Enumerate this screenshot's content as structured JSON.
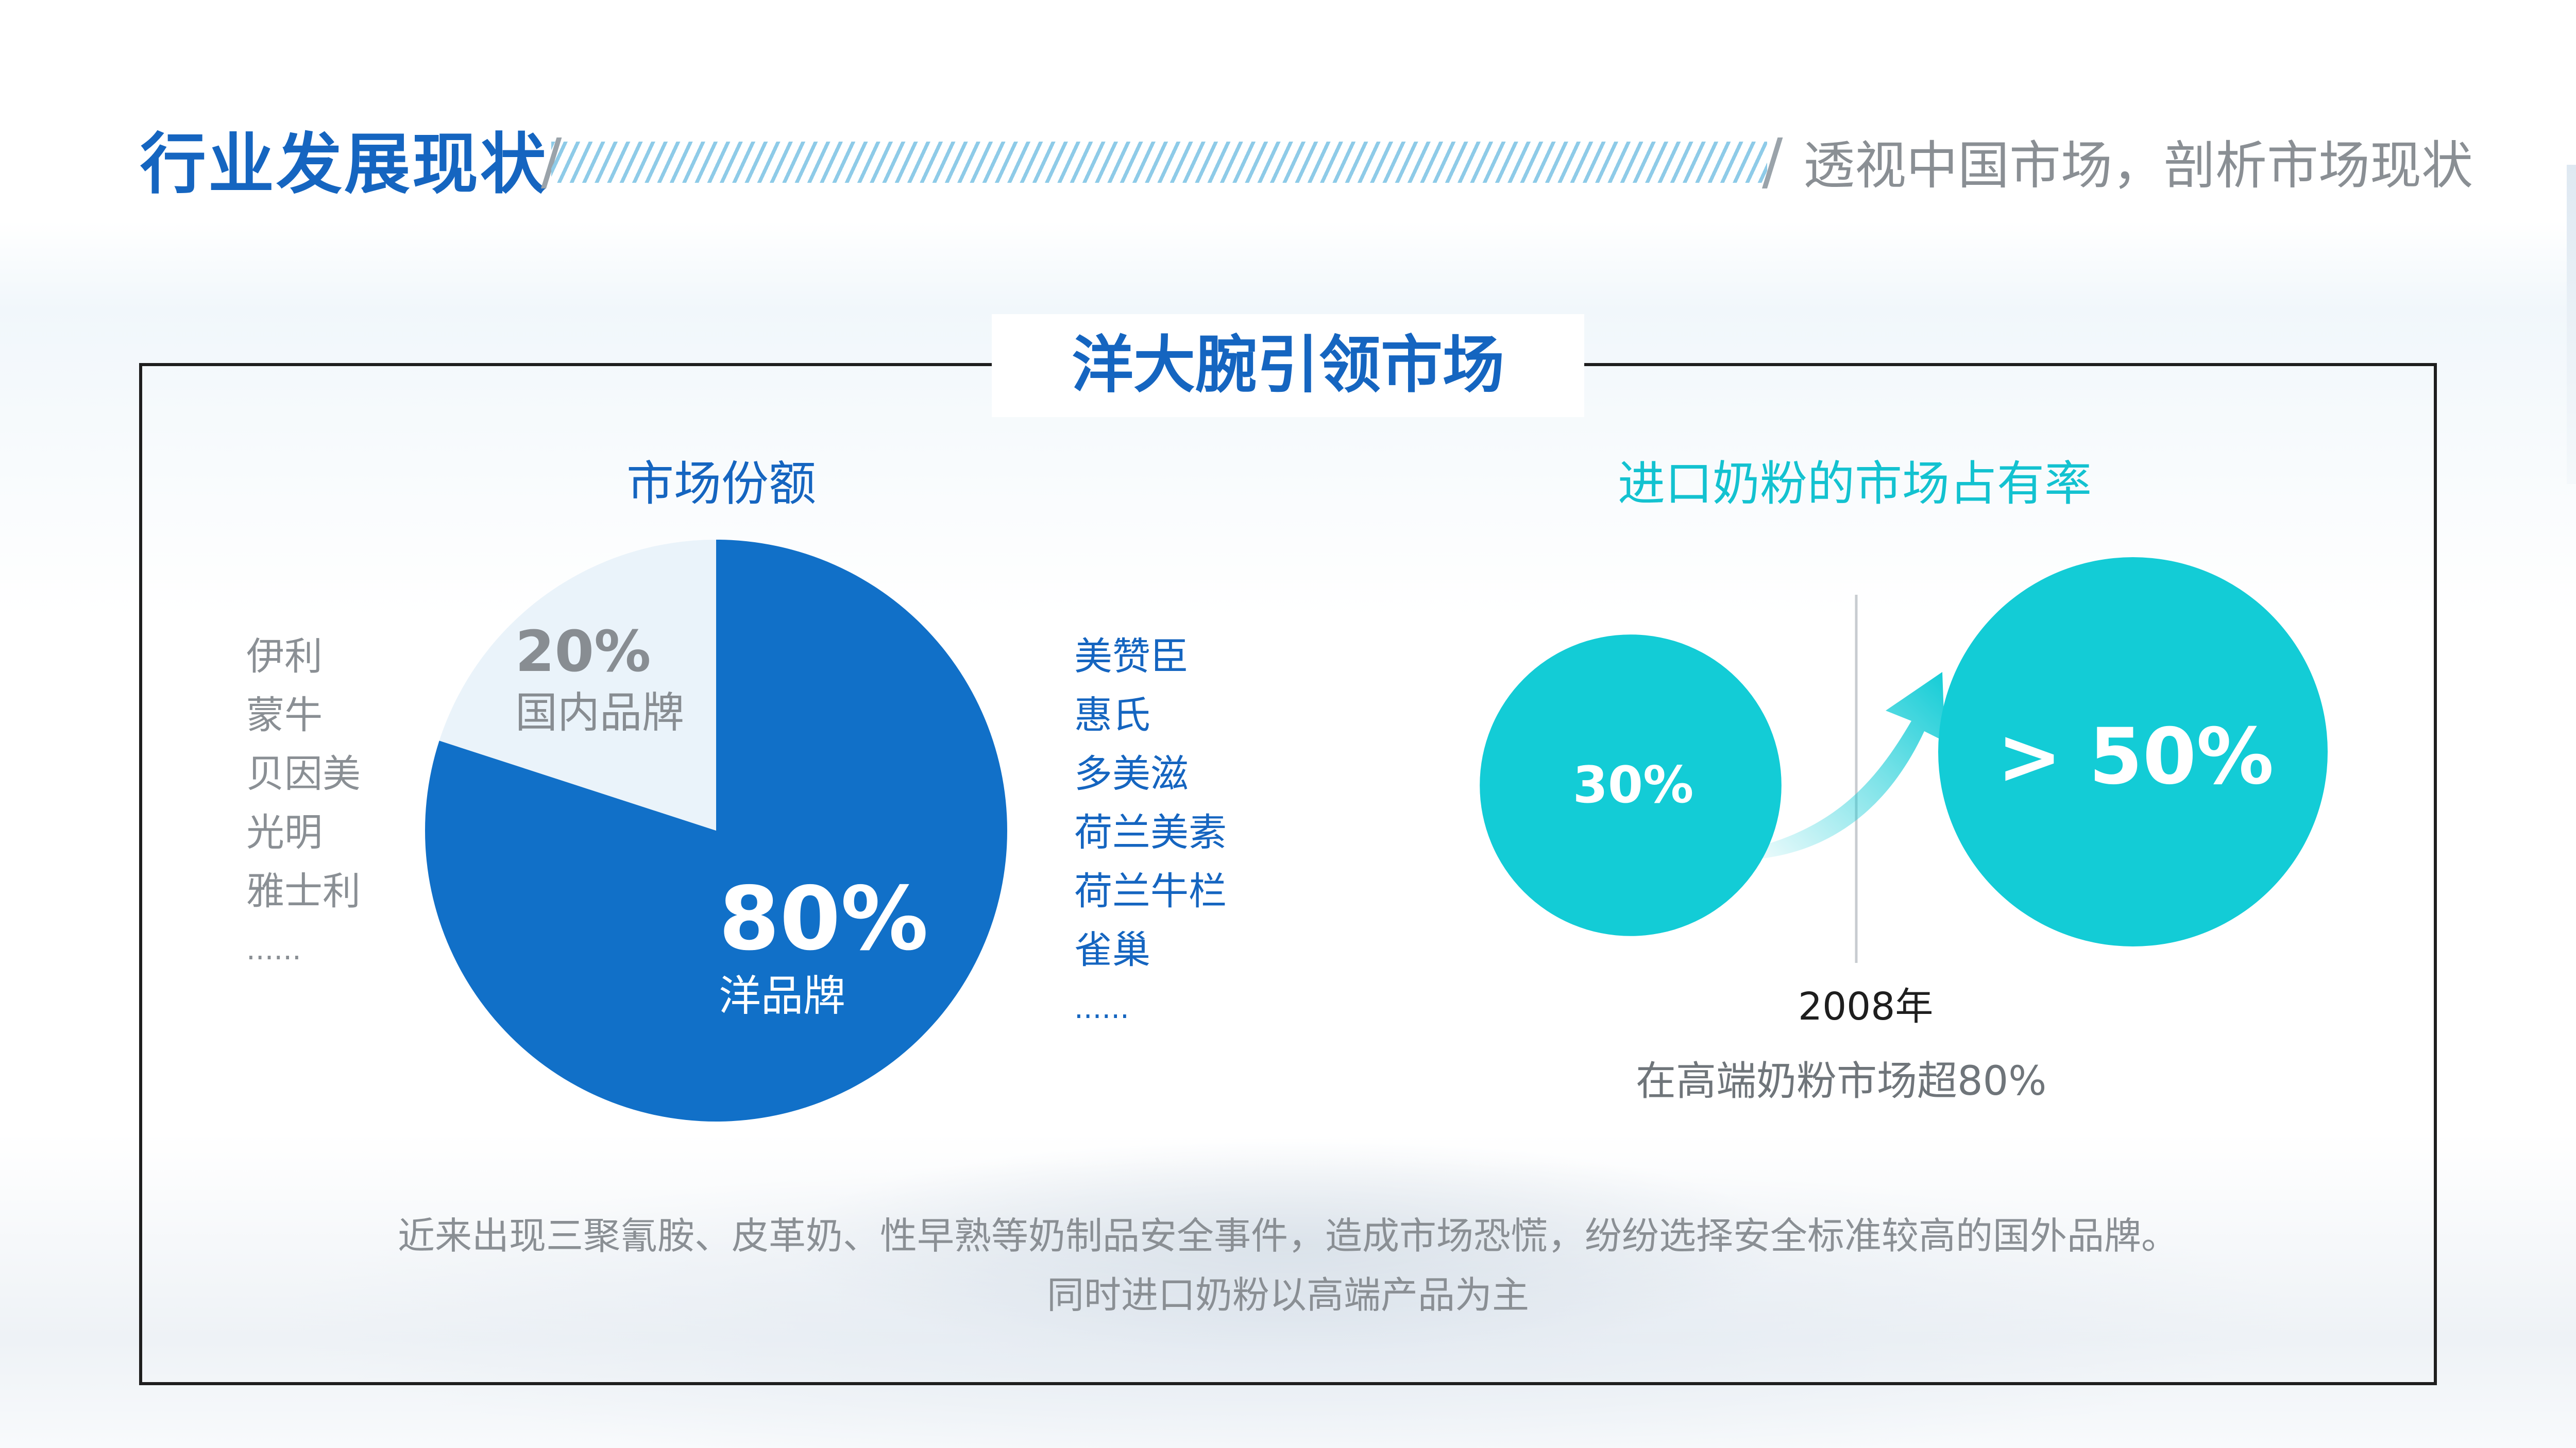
{
  "header": {
    "title": "行业发展现状",
    "subtitle": "透视中国市场，剖析市场现状"
  },
  "section": {
    "title": "洋大腕引领市场"
  },
  "market_share": {
    "title": "市场份额",
    "domestic_brands": [
      "伊利",
      "蒙牛",
      "贝因美",
      "光明",
      "雅士利",
      "......"
    ],
    "foreign_brands": [
      "美赞臣",
      "惠氏",
      "多美滋",
      "荷兰美素",
      "荷兰牛栏",
      "雀巢",
      "......"
    ],
    "slices": [
      {
        "value_label": "80%",
        "label": "洋品牌"
      },
      {
        "value_label": "20%",
        "label": "国内品牌"
      }
    ]
  },
  "import_share": {
    "title": "进口奶粉的市场占有率",
    "before_label": "30%",
    "after_label": "> 50%",
    "year_label": "2008年",
    "note": "在高端奶粉市场超80%"
  },
  "footer": {
    "line1": "近来出现三聚氰胺、皮革奶、性早熟等奶制品安全事件，造成市场恐慌，纷纷选择安全标准较高的国外品牌。",
    "line2": "同时进口奶粉以高端产品为主"
  },
  "chart_data": [
    {
      "type": "pie",
      "title": "市场份额",
      "categories": [
        "洋品牌",
        "国内品牌"
      ],
      "values": [
        80,
        20
      ],
      "colors": [
        "#1170c8",
        "#eaf3fa"
      ]
    },
    {
      "type": "bar",
      "title": "进口奶粉的市场占有率",
      "categories": [
        "",
        "2008年"
      ],
      "values": [
        30,
        50
      ],
      "value_labels": [
        "30%",
        "> 50%"
      ],
      "colors": [
        "#13ccd6",
        "#13ccd6"
      ]
    }
  ],
  "colors": {
    "brand_blue": "#1565c0",
    "pie_main": "#1170c8",
    "pie_minor": "#eaf3fa",
    "cyan": "#13ccd6",
    "grey_text": "#8a8f94"
  }
}
